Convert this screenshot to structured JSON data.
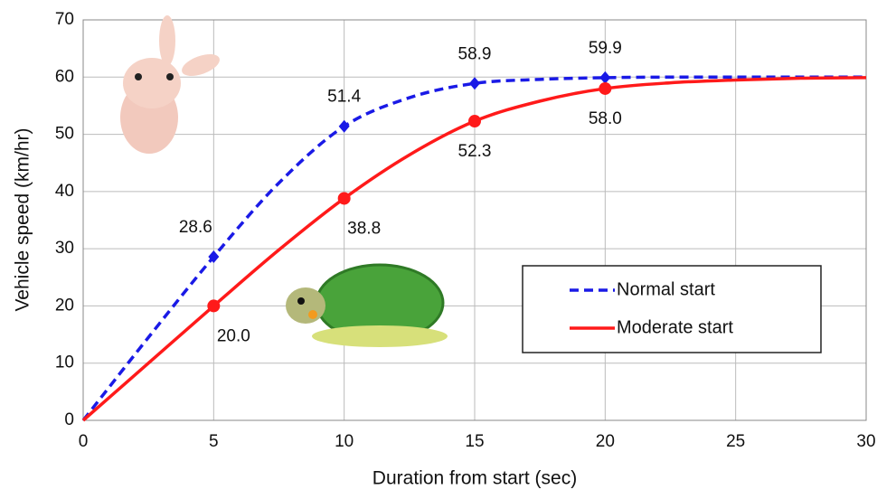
{
  "chart_data": {
    "type": "line",
    "xlabel": "Duration from start (sec)",
    "ylabel": "Vehicle speed (km/hr)",
    "x": [
      0,
      2.5,
      5,
      7.5,
      10,
      12.5,
      15,
      17.5,
      20,
      22.5,
      25,
      27.5,
      30
    ],
    "series": [
      {
        "name": "Normal start",
        "color": "#1a1ae6",
        "dash": true,
        "marker": "diamond",
        "values": [
          0,
          14.5,
          28.6,
          41.5,
          51.4,
          56.4,
          58.9,
          59.6,
          59.9,
          60,
          60,
          60,
          60
        ],
        "value_labels": [
          null,
          null,
          "28.6",
          null,
          "51.4",
          null,
          "58.9",
          null,
          "59.9",
          null,
          null,
          null,
          null
        ]
      },
      {
        "name": "Moderate start",
        "color": "#ff1a1a",
        "dash": false,
        "marker": "circle",
        "values": [
          0,
          10,
          20.0,
          29.8,
          38.8,
          46.4,
          52.3,
          55.8,
          58.0,
          59.0,
          59.5,
          59.8,
          59.9
        ],
        "value_labels": [
          null,
          null,
          "20.0",
          null,
          "38.8",
          null,
          "52.3",
          null,
          "58.0",
          null,
          null,
          null,
          null
        ]
      }
    ],
    "xlim": [
      0,
      30
    ],
    "xticks": [
      0,
      5,
      10,
      15,
      20,
      25,
      30
    ],
    "ylim": [
      0,
      70
    ],
    "yticks": [
      0,
      10,
      20,
      30,
      40,
      50,
      60,
      70
    ],
    "grid": true
  }
}
